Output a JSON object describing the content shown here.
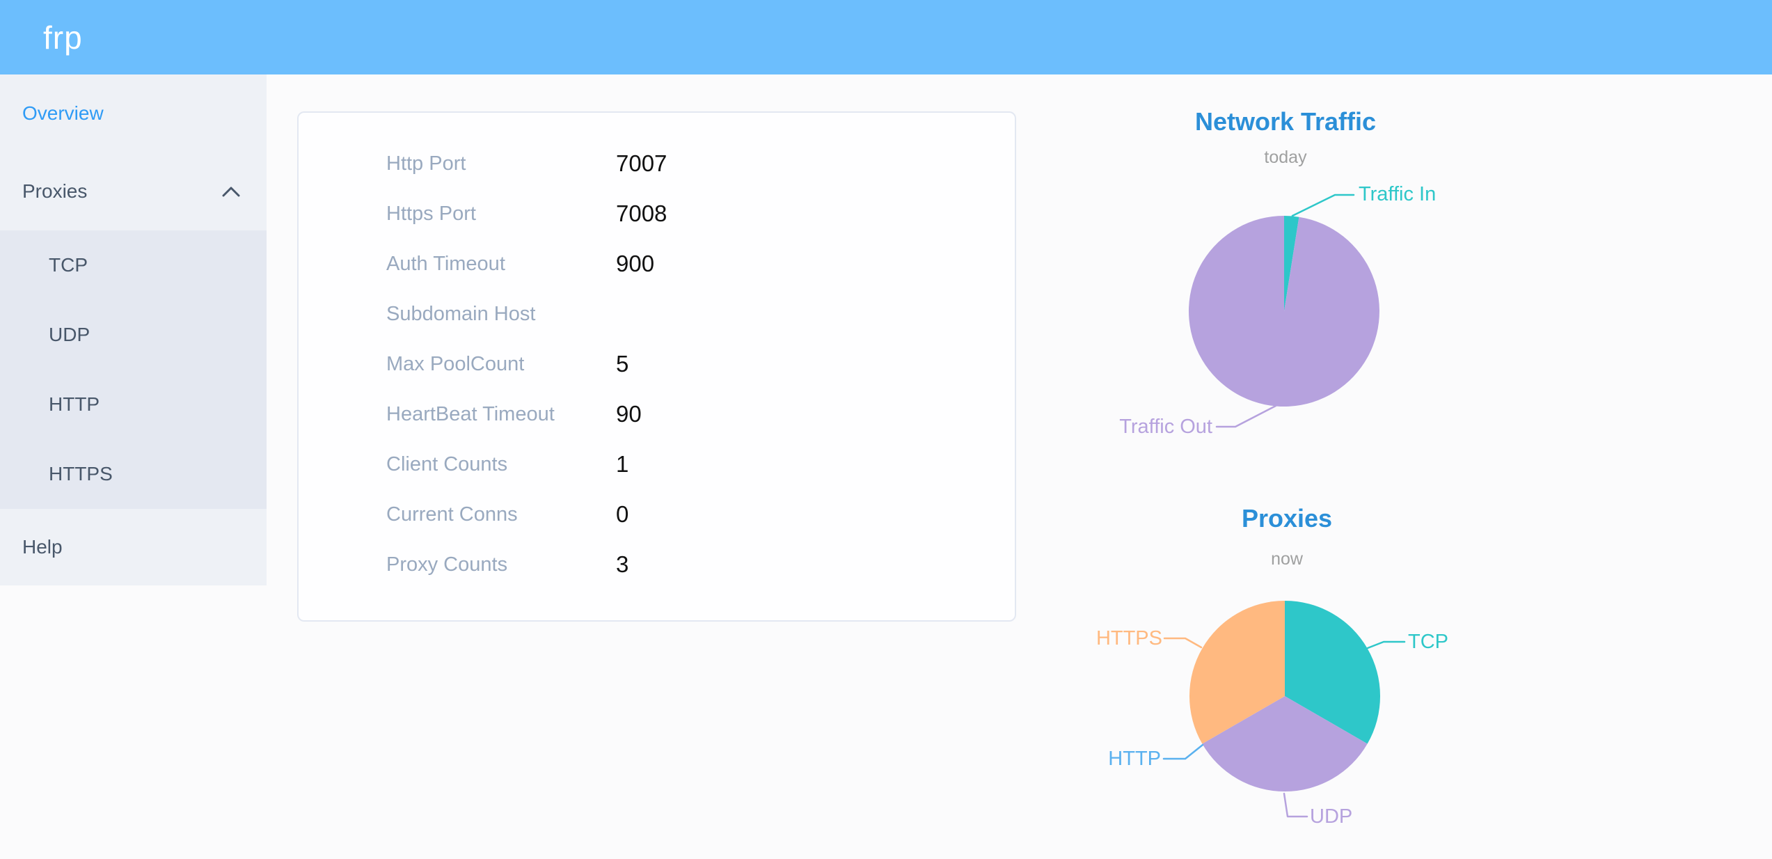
{
  "header": {
    "logo": "frp"
  },
  "sidebar": {
    "items": [
      {
        "label": "Overview",
        "active": true
      },
      {
        "label": "Proxies",
        "active": false,
        "expanded": true,
        "children": [
          "TCP",
          "UDP",
          "HTTP",
          "HTTPS"
        ]
      },
      {
        "label": "Help",
        "active": false
      }
    ]
  },
  "overview": {
    "rows": [
      {
        "label": "Http Port",
        "value": "7007"
      },
      {
        "label": "Https Port",
        "value": "7008"
      },
      {
        "label": "Auth Timeout",
        "value": "900"
      },
      {
        "label": "Subdomain Host",
        "value": ""
      },
      {
        "label": "Max PoolCount",
        "value": "5"
      },
      {
        "label": "HeartBeat Timeout",
        "value": "90"
      },
      {
        "label": "Client Counts",
        "value": "1"
      },
      {
        "label": "Current Conns",
        "value": "0"
      },
      {
        "label": "Proxy Counts",
        "value": "3"
      }
    ]
  },
  "colors": {
    "header_bg": "#6cbefd",
    "sidebar_bg": "#eef1f6",
    "submenu_bg": "#e4e8f1",
    "menu_text": "#48576a",
    "menu_active": "#2f9bf5",
    "label_gray": "#99a9bf",
    "title_blue": "#2b8fd8",
    "subtitle_gray": "#9fa0a0",
    "teal": "#2ec7c9",
    "purple": "#b6a2de",
    "blue": "#5ab1ef",
    "orange": "#ffb980"
  },
  "chart_data": [
    {
      "type": "pie",
      "title": "Network Traffic",
      "subtitle": "today",
      "legend_position": "callout-labels",
      "values_note": "slice sizes estimated as percent of total traffic",
      "series": [
        {
          "name": "Traffic In",
          "value": 2.5,
          "color": "#2ec7c9"
        },
        {
          "name": "Traffic Out",
          "value": 97.5,
          "color": "#b6a2de"
        }
      ]
    },
    {
      "type": "pie",
      "title": "Proxies",
      "subtitle": "now",
      "legend_position": "callout-labels",
      "values_note": "proxy counts by type (total 3, HTTP is zero)",
      "series": [
        {
          "name": "TCP",
          "value": 1,
          "color": "#2ec7c9"
        },
        {
          "name": "UDP",
          "value": 1,
          "color": "#b6a2de"
        },
        {
          "name": "HTTP",
          "value": 0,
          "color": "#5ab1ef"
        },
        {
          "name": "HTTPS",
          "value": 1,
          "color": "#ffb980"
        }
      ]
    }
  ]
}
